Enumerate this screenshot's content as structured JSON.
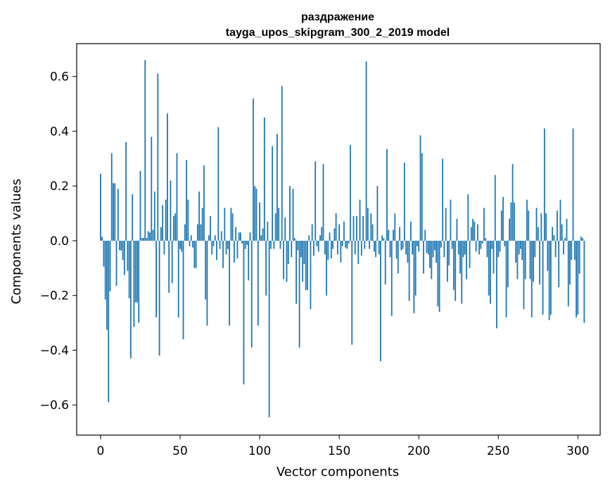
{
  "chart_data": {
    "type": "bar",
    "title": "раздражение",
    "subtitle": "tayga_upos_skipgram_300_2_2019 model",
    "xlabel": "Vector components",
    "ylabel": "Components values",
    "xlim": [
      -15,
      314
    ],
    "ylim": [
      -0.71,
      0.72
    ],
    "x_ticks": [
      0,
      50,
      100,
      150,
      200,
      250,
      300
    ],
    "y_ticks": [
      -0.6,
      -0.4,
      -0.2,
      0.0,
      0.2,
      0.4,
      0.6
    ],
    "y_tick_labels": [
      "−0.6",
      "−0.4",
      "−0.2",
      "0.0",
      "0.2",
      "0.4",
      "0.6"
    ],
    "bar_color": "#1f77b4",
    "series": [
      {
        "name": "раздражение",
        "x_start": 0,
        "values": [
          0.245,
          0.015,
          -0.095,
          -0.215,
          -0.325,
          -0.59,
          -0.185,
          0.32,
          0.21,
          0.21,
          -0.165,
          0.19,
          -0.035,
          -0.035,
          -0.07,
          -0.125,
          0.36,
          -0.11,
          -0.21,
          -0.43,
          0.17,
          -0.315,
          -0.225,
          -0.225,
          -0.3,
          0.255,
          0.01,
          0.01,
          0.66,
          0.01,
          0.035,
          0.03,
          0.38,
          0.04,
          0.18,
          -0.28,
          0.61,
          -0.42,
          0.05,
          0.13,
          -0.05,
          0.15,
          0.465,
          -0.19,
          0.22,
          -0.155,
          0.09,
          0.1,
          0.32,
          -0.28,
          -0.03,
          -0.04,
          -0.36,
          0.06,
          0.295,
          0.15,
          -0.02,
          0.02,
          -0.025,
          -0.1,
          -0.1,
          0.06,
          0.18,
          0.06,
          0.12,
          0.275,
          -0.215,
          -0.31,
          0.02,
          0.09,
          -0.05,
          -0.02,
          0.02,
          -0.07,
          0.415,
          -0.03,
          0.035,
          -0.1,
          0.12,
          -0.05,
          -0.03,
          -0.31,
          0.12,
          0.1,
          -0.08,
          0.05,
          -0.065,
          0.03,
          0.03,
          -0.01,
          -0.525,
          -0.03,
          -0.015,
          -0.145,
          0.03,
          -0.39,
          0.52,
          0.2,
          0.19,
          -0.31,
          0.14,
          0.02,
          0.045,
          0.45,
          -0.2,
          0.07,
          -0.645,
          -0.03,
          0.345,
          -0.03,
          0.1,
          0.39,
          0.12,
          -0.03,
          0.565,
          -0.14,
          0.085,
          -0.15,
          -0.085,
          0.2,
          -0.06,
          0.19,
          0.01,
          -0.23,
          -0.035,
          -0.39,
          -0.06,
          -0.15,
          -0.085,
          -0.18,
          -0.18,
          0.02,
          -0.25,
          0.06,
          -0.055,
          0.29,
          -0.02,
          -0.04,
          0.02,
          0.05,
          0.28,
          -0.05,
          -0.2,
          -0.07,
          0.03,
          -0.065,
          -0.03,
          0.045,
          0.1,
          -0.05,
          0.06,
          -0.08,
          -0.02,
          0.07,
          -0.025,
          -0.03,
          -0.01,
          0.35,
          -0.38,
          0.09,
          -0.05,
          0.09,
          -0.085,
          0.15,
          -0.055,
          0.09,
          -0.03,
          0.655,
          0.12,
          -0.03,
          0.1,
          0.06,
          -0.04,
          -0.06,
          0.2,
          -0.05,
          -0.44,
          0.02,
          0.01,
          -0.16,
          0.335,
          0.04,
          -0.06,
          -0.275,
          0.04,
          0.1,
          -0.065,
          -0.12,
          0.05,
          -0.035,
          -0.03,
          0.285,
          -0.05,
          -0.08,
          -0.22,
          0.07,
          -0.05,
          -0.265,
          -0.2,
          -0.02,
          -0.04,
          0.385,
          0.32,
          -0.12,
          0.04,
          -0.045,
          -0.05,
          -0.1,
          -0.14,
          -0.06,
          -0.035,
          -0.08,
          -0.24,
          -0.26,
          -0.025,
          0.3,
          -0.06,
          0.12,
          -0.15,
          -0.09,
          0.15,
          -0.03,
          -0.18,
          -0.22,
          0.08,
          -0.05,
          -0.12,
          -0.23,
          -0.06,
          -0.05,
          -0.14,
          0.17,
          -0.1,
          0.05,
          0.08,
          0.07,
          -0.04,
          0.06,
          -0.05,
          -0.03,
          -0.01,
          0.12,
          0.01,
          -0.06,
          -0.2,
          -0.23,
          -0.03,
          -0.12,
          0.24,
          -0.32,
          -0.06,
          -0.04,
          0.11,
          0.16,
          -0.02,
          -0.28,
          -0.17,
          0.08,
          0.14,
          0.28,
          0.14,
          -0.08,
          -0.14,
          -0.05,
          -0.03,
          -0.07,
          -0.25,
          -0.14,
          0.15,
          0.11,
          -0.14,
          -0.28,
          -0.15,
          -0.06,
          0.12,
          0.05,
          -0.16,
          0.1,
          -0.27,
          0.41,
          0.1,
          -0.11,
          -0.29,
          -0.27,
          0.05,
          0.02,
          -0.06,
          0.11,
          -0.17,
          0.15,
          0.06,
          -0.05,
          0.01,
          0.08,
          -0.24,
          -0.16,
          -0.07,
          0.41,
          -0.07,
          -0.28,
          -0.27,
          -0.12,
          0.015,
          0.01,
          -0.3
        ]
      }
    ]
  }
}
